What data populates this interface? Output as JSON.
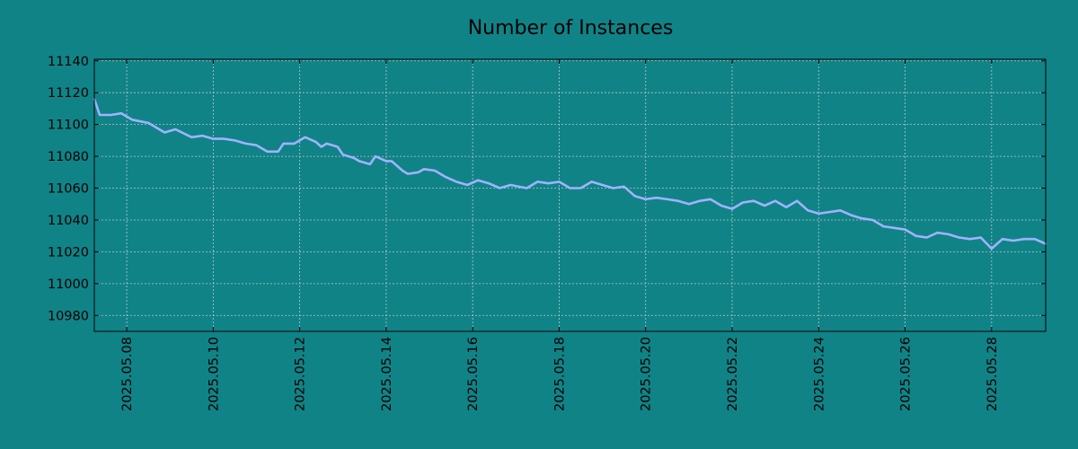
{
  "chart_data": {
    "type": "line",
    "title": "Number of Instances",
    "xlabel": "",
    "ylabel": "",
    "background_color": "#108387",
    "line_color": "#9fb3ff",
    "grid": true,
    "x_range": [
      "2025.05.07 06:00",
      "2025.05.29 06:00"
    ],
    "ylim": [
      10970,
      11141
    ],
    "y_ticks": [
      10980,
      11000,
      11020,
      11040,
      11060,
      11080,
      11100,
      11120,
      11140
    ],
    "x_tick_labels": [
      "2025.05.08",
      "2025.05.10",
      "2025.05.12",
      "2025.05.14",
      "2025.05.16",
      "2025.05.18",
      "2025.05.20",
      "2025.05.22",
      "2025.05.24",
      "2025.05.26",
      "2025.05.28"
    ],
    "series": [
      {
        "points": [
          [
            "2025.05.07 06:00",
            11116
          ],
          [
            "2025.05.07 09:00",
            11106
          ],
          [
            "2025.05.07 15:00",
            11106
          ],
          [
            "2025.05.07 21:00",
            11107
          ],
          [
            "2025.05.08 03:00",
            11103
          ],
          [
            "2025.05.08 12:00",
            11101
          ],
          [
            "2025.05.08 21:00",
            11095
          ],
          [
            "2025.05.09 03:00",
            11097
          ],
          [
            "2025.05.09 12:00",
            11092
          ],
          [
            "2025.05.09 18:00",
            11093
          ],
          [
            "2025.05.10 00:00",
            11091
          ],
          [
            "2025.05.10 06:00",
            11091
          ],
          [
            "2025.05.10 12:00",
            11090
          ],
          [
            "2025.05.10 18:00",
            11088
          ],
          [
            "2025.05.11 00:00",
            11087
          ],
          [
            "2025.05.11 06:00",
            11083
          ],
          [
            "2025.05.11 12:00",
            11083
          ],
          [
            "2025.05.11 15:00",
            11088
          ],
          [
            "2025.05.11 21:00",
            11088
          ],
          [
            "2025.05.12 03:00",
            11092
          ],
          [
            "2025.05.12 09:00",
            11089
          ],
          [
            "2025.05.12 12:00",
            11086
          ],
          [
            "2025.05.12 15:00",
            11088
          ],
          [
            "2025.05.12 21:00",
            11086
          ],
          [
            "2025.05.13 00:00",
            11081
          ],
          [
            "2025.05.13 06:00",
            11079
          ],
          [
            "2025.05.13 09:00",
            11077
          ],
          [
            "2025.05.13 15:00",
            11075
          ],
          [
            "2025.05.13 18:00",
            11080
          ],
          [
            "2025.05.14 00:00",
            11077
          ],
          [
            "2025.05.14 03:00",
            11077
          ],
          [
            "2025.05.14 09:00",
            11071
          ],
          [
            "2025.05.14 12:00",
            11069
          ],
          [
            "2025.05.14 18:00",
            11070
          ],
          [
            "2025.05.14 21:00",
            11072
          ],
          [
            "2025.05.15 03:00",
            11071
          ],
          [
            "2025.05.15 09:00",
            11067
          ],
          [
            "2025.05.15 15:00",
            11064
          ],
          [
            "2025.05.15 21:00",
            11062
          ],
          [
            "2025.05.16 03:00",
            11065
          ],
          [
            "2025.05.16 09:00",
            11063
          ],
          [
            "2025.05.16 15:00",
            11060
          ],
          [
            "2025.05.16 21:00",
            11062
          ],
          [
            "2025.05.17 06:00",
            11060
          ],
          [
            "2025.05.17 12:00",
            11064
          ],
          [
            "2025.05.17 18:00",
            11063
          ],
          [
            "2025.05.18 00:00",
            11064
          ],
          [
            "2025.05.18 06:00",
            11060
          ],
          [
            "2025.05.18 12:00",
            11060
          ],
          [
            "2025.05.18 18:00",
            11064
          ],
          [
            "2025.05.19 00:00",
            11062
          ],
          [
            "2025.05.19 06:00",
            11060
          ],
          [
            "2025.05.19 12:00",
            11061
          ],
          [
            "2025.05.19 18:00",
            11055
          ],
          [
            "2025.05.20 00:00",
            11053
          ],
          [
            "2025.05.20 06:00",
            11054
          ],
          [
            "2025.05.20 12:00",
            11053
          ],
          [
            "2025.05.20 18:00",
            11052
          ],
          [
            "2025.05.21 00:00",
            11050
          ],
          [
            "2025.05.21 06:00",
            11052
          ],
          [
            "2025.05.21 12:00",
            11053
          ],
          [
            "2025.05.21 18:00",
            11049
          ],
          [
            "2025.05.22 00:00",
            11047
          ],
          [
            "2025.05.22 06:00",
            11051
          ],
          [
            "2025.05.22 12:00",
            11052
          ],
          [
            "2025.05.22 18:00",
            11049
          ],
          [
            "2025.05.23 00:00",
            11052
          ],
          [
            "2025.05.23 06:00",
            11048
          ],
          [
            "2025.05.23 12:00",
            11052
          ],
          [
            "2025.05.23 18:00",
            11046
          ],
          [
            "2025.05.24 00:00",
            11044
          ],
          [
            "2025.05.24 06:00",
            11045
          ],
          [
            "2025.05.24 12:00",
            11046
          ],
          [
            "2025.05.24 18:00",
            11043
          ],
          [
            "2025.05.25 00:00",
            11041
          ],
          [
            "2025.05.25 06:00",
            11040
          ],
          [
            "2025.05.25 12:00",
            11036
          ],
          [
            "2025.05.25 18:00",
            11035
          ],
          [
            "2025.05.26 00:00",
            11034
          ],
          [
            "2025.05.26 06:00",
            11030
          ],
          [
            "2025.05.26 12:00",
            11029
          ],
          [
            "2025.05.26 18:00",
            11032
          ],
          [
            "2025.05.27 00:00",
            11031
          ],
          [
            "2025.05.27 06:00",
            11029
          ],
          [
            "2025.05.27 12:00",
            11028
          ],
          [
            "2025.05.27 18:00",
            11029
          ],
          [
            "2025.05.28 00:00",
            11022
          ],
          [
            "2025.05.28 06:00",
            11028
          ],
          [
            "2025.05.28 12:00",
            11027
          ],
          [
            "2025.05.28 18:00",
            11028
          ],
          [
            "2025.05.29 00:00",
            11028
          ],
          [
            "2025.05.29 06:00",
            11025
          ]
        ]
      }
    ]
  }
}
